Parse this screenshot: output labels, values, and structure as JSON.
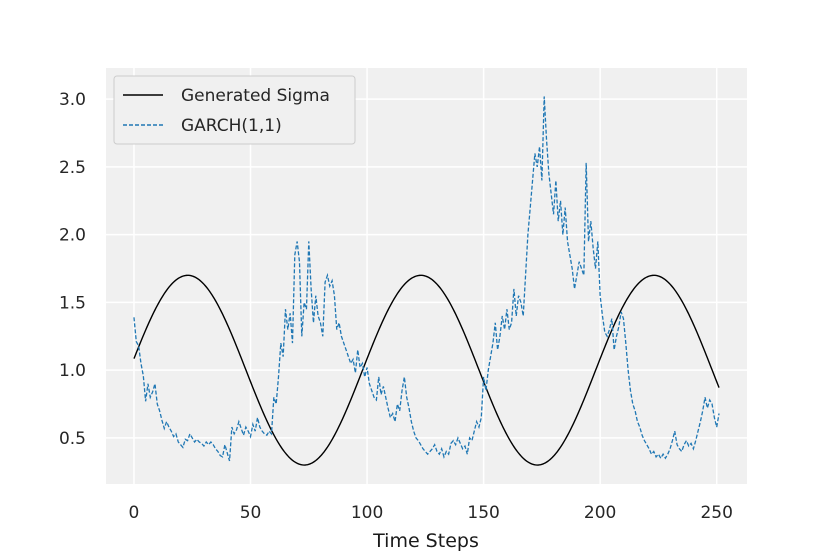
{
  "chart_data": {
    "type": "line",
    "title": "",
    "xlabel": "Time Steps",
    "ylabel": "",
    "xlim": [
      -12,
      263
    ],
    "ylim": [
      0.16,
      3.23
    ],
    "xticks": [
      0,
      50,
      100,
      150,
      200,
      250
    ],
    "yticks": [
      0.5,
      1.0,
      1.5,
      2.0,
      2.5,
      3.0
    ],
    "xtick_labels": [
      "0",
      "50",
      "100",
      "150",
      "200",
      "250"
    ],
    "ytick_labels": [
      "0.5",
      "1.0",
      "1.5",
      "2.0",
      "2.5",
      "3.0"
    ],
    "grid": true,
    "legend_position": "top-left",
    "colors": {
      "generated": "#000000",
      "garch": "#1f77b4",
      "background": "#f0f0f0",
      "grid": "#ffffff"
    },
    "series": [
      {
        "name": "Generated Sigma",
        "style": "solid",
        "formula": "1 + 0.7*sin(2*pi*(t+c)/100)",
        "x_range": [
          0,
          251
        ]
      },
      {
        "name": "GARCH(1,1)",
        "style": "dashed",
        "points": [
          [
            0,
            1.39
          ],
          [
            1,
            1.21
          ],
          [
            2,
            1.18
          ],
          [
            3,
            1.05
          ],
          [
            4,
            0.96
          ],
          [
            5,
            0.77
          ],
          [
            6,
            0.9
          ],
          [
            7,
            0.8
          ],
          [
            8,
            0.84
          ],
          [
            9,
            0.9
          ],
          [
            10,
            0.75
          ],
          [
            11,
            0.7
          ],
          [
            12,
            0.63
          ],
          [
            13,
            0.57
          ],
          [
            14,
            0.62
          ],
          [
            15,
            0.58
          ],
          [
            16,
            0.55
          ],
          [
            17,
            0.51
          ],
          [
            18,
            0.53
          ],
          [
            19,
            0.47
          ],
          [
            20,
            0.45
          ],
          [
            21,
            0.43
          ],
          [
            22,
            0.49
          ],
          [
            23,
            0.48
          ],
          [
            24,
            0.53
          ],
          [
            25,
            0.5
          ],
          [
            26,
            0.47
          ],
          [
            27,
            0.49
          ],
          [
            28,
            0.47
          ],
          [
            29,
            0.46
          ],
          [
            30,
            0.44
          ],
          [
            31,
            0.47
          ],
          [
            32,
            0.45
          ],
          [
            33,
            0.47
          ],
          [
            34,
            0.45
          ],
          [
            35,
            0.42
          ],
          [
            36,
            0.4
          ],
          [
            37,
            0.37
          ],
          [
            38,
            0.36
          ],
          [
            39,
            0.45
          ],
          [
            40,
            0.39
          ],
          [
            41,
            0.33
          ],
          [
            42,
            0.58
          ],
          [
            43,
            0.53
          ],
          [
            44,
            0.56
          ],
          [
            45,
            0.62
          ],
          [
            46,
            0.57
          ],
          [
            47,
            0.52
          ],
          [
            48,
            0.58
          ],
          [
            49,
            0.55
          ],
          [
            50,
            0.51
          ],
          [
            51,
            0.6
          ],
          [
            52,
            0.55
          ],
          [
            53,
            0.65
          ],
          [
            54,
            0.58
          ],
          [
            55,
            0.55
          ],
          [
            56,
            0.53
          ],
          [
            57,
            0.52
          ],
          [
            58,
            0.55
          ],
          [
            59,
            0.53
          ],
          [
            60,
            0.8
          ],
          [
            61,
            0.75
          ],
          [
            62,
            0.95
          ],
          [
            63,
            1.2
          ],
          [
            64,
            1.1
          ],
          [
            65,
            1.45
          ],
          [
            66,
            1.3
          ],
          [
            67,
            1.42
          ],
          [
            68,
            1.2
          ],
          [
            69,
            1.85
          ],
          [
            70,
            1.95
          ],
          [
            71,
            1.8
          ],
          [
            72,
            1.25
          ],
          [
            73,
            1.5
          ],
          [
            74,
            1.45
          ],
          [
            75,
            1.95
          ],
          [
            76,
            1.6
          ],
          [
            77,
            1.35
          ],
          [
            78,
            1.55
          ],
          [
            79,
            1.4
          ],
          [
            80,
            1.35
          ],
          [
            81,
            1.25
          ],
          [
            82,
            1.65
          ],
          [
            83,
            1.7
          ],
          [
            84,
            1.62
          ],
          [
            85,
            1.66
          ],
          [
            86,
            1.55
          ],
          [
            87,
            1.3
          ],
          [
            88,
            1.35
          ],
          [
            89,
            1.25
          ],
          [
            90,
            1.2
          ],
          [
            91,
            1.15
          ],
          [
            92,
            1.1
          ],
          [
            93,
            1.05
          ],
          [
            94,
            1.08
          ],
          [
            95,
            0.98
          ],
          [
            96,
            1.15
          ],
          [
            97,
            1.02
          ],
          [
            98,
            1.05
          ],
          [
            99,
            0.95
          ],
          [
            100,
            1.02
          ],
          [
            101,
            0.9
          ],
          [
            102,
            0.85
          ],
          [
            103,
            0.8
          ],
          [
            104,
            0.78
          ],
          [
            105,
            0.95
          ],
          [
            106,
            0.82
          ],
          [
            107,
            0.88
          ],
          [
            108,
            0.8
          ],
          [
            109,
            0.72
          ],
          [
            110,
            0.65
          ],
          [
            111,
            0.68
          ],
          [
            112,
            0.62
          ],
          [
            113,
            0.75
          ],
          [
            114,
            0.7
          ],
          [
            115,
            0.85
          ],
          [
            116,
            0.95
          ],
          [
            117,
            0.8
          ],
          [
            118,
            0.72
          ],
          [
            119,
            0.62
          ],
          [
            120,
            0.55
          ],
          [
            121,
            0.5
          ],
          [
            122,
            0.48
          ],
          [
            123,
            0.45
          ],
          [
            124,
            0.42
          ],
          [
            125,
            0.4
          ],
          [
            126,
            0.38
          ],
          [
            127,
            0.4
          ],
          [
            128,
            0.42
          ],
          [
            129,
            0.45
          ],
          [
            130,
            0.4
          ],
          [
            131,
            0.38
          ],
          [
            132,
            0.42
          ],
          [
            133,
            0.36
          ],
          [
            134,
            0.4
          ],
          [
            135,
            0.38
          ],
          [
            136,
            0.46
          ],
          [
            137,
            0.48
          ],
          [
            138,
            0.45
          ],
          [
            139,
            0.5
          ],
          [
            140,
            0.46
          ],
          [
            141,
            0.42
          ],
          [
            142,
            0.44
          ],
          [
            143,
            0.38
          ],
          [
            144,
            0.5
          ],
          [
            145,
            0.48
          ],
          [
            146,
            0.55
          ],
          [
            147,
            0.62
          ],
          [
            148,
            0.58
          ],
          [
            149,
            0.65
          ],
          [
            150,
            0.95
          ],
          [
            151,
            0.85
          ],
          [
            152,
            1.0
          ],
          [
            153,
            1.1
          ],
          [
            154,
            1.2
          ],
          [
            155,
            1.35
          ],
          [
            156,
            1.15
          ],
          [
            157,
            1.25
          ],
          [
            158,
            1.4
          ],
          [
            159,
            1.3
          ],
          [
            160,
            1.45
          ],
          [
            161,
            1.3
          ],
          [
            162,
            1.35
          ],
          [
            163,
            1.6
          ],
          [
            164,
            1.4
          ],
          [
            165,
            1.55
          ],
          [
            166,
            1.5
          ],
          [
            167,
            1.4
          ],
          [
            168,
            1.7
          ],
          [
            169,
            2.0
          ],
          [
            170,
            2.2
          ],
          [
            171,
            2.4
          ],
          [
            172,
            2.6
          ],
          [
            173,
            2.5
          ],
          [
            174,
            2.65
          ],
          [
            175,
            2.4
          ],
          [
            176,
            3.02
          ],
          [
            177,
            2.7
          ],
          [
            178,
            2.45
          ],
          [
            179,
            2.3
          ],
          [
            180,
            2.15
          ],
          [
            181,
            2.4
          ],
          [
            182,
            2.1
          ],
          [
            183,
            2.25
          ],
          [
            184,
            2.0
          ],
          [
            185,
            2.2
          ],
          [
            186,
            1.95
          ],
          [
            187,
            1.85
          ],
          [
            188,
            1.75
          ],
          [
            189,
            1.6
          ],
          [
            190,
            1.7
          ],
          [
            191,
            1.8
          ],
          [
            192,
            1.75
          ],
          [
            193,
            1.7
          ],
          [
            194,
            2.53
          ],
          [
            195,
            1.95
          ],
          [
            196,
            2.1
          ],
          [
            197,
            1.9
          ],
          [
            198,
            1.75
          ],
          [
            199,
            1.95
          ],
          [
            200,
            1.55
          ],
          [
            201,
            1.4
          ],
          [
            202,
            1.28
          ],
          [
            203,
            1.25
          ],
          [
            204,
            1.3
          ],
          [
            205,
            1.38
          ],
          [
            206,
            1.15
          ],
          [
            207,
            1.25
          ],
          [
            208,
            1.32
          ],
          [
            209,
            1.43
          ],
          [
            210,
            1.38
          ],
          [
            211,
            1.2
          ],
          [
            212,
            1.0
          ],
          [
            213,
            0.85
          ],
          [
            214,
            0.75
          ],
          [
            215,
            0.7
          ],
          [
            216,
            0.62
          ],
          [
            217,
            0.58
          ],
          [
            218,
            0.52
          ],
          [
            219,
            0.48
          ],
          [
            220,
            0.45
          ],
          [
            221,
            0.42
          ],
          [
            222,
            0.38
          ],
          [
            223,
            0.4
          ],
          [
            224,
            0.36
          ],
          [
            225,
            0.38
          ],
          [
            226,
            0.35
          ],
          [
            227,
            0.38
          ],
          [
            228,
            0.35
          ],
          [
            229,
            0.38
          ],
          [
            230,
            0.42
          ],
          [
            231,
            0.48
          ],
          [
            232,
            0.55
          ],
          [
            233,
            0.45
          ],
          [
            234,
            0.42
          ],
          [
            235,
            0.4
          ],
          [
            236,
            0.45
          ],
          [
            237,
            0.48
          ],
          [
            238,
            0.44
          ],
          [
            239,
            0.46
          ],
          [
            240,
            0.42
          ],
          [
            241,
            0.48
          ],
          [
            242,
            0.55
          ],
          [
            243,
            0.62
          ],
          [
            244,
            0.7
          ],
          [
            245,
            0.8
          ],
          [
            246,
            0.72
          ],
          [
            247,
            0.78
          ],
          [
            248,
            0.75
          ],
          [
            249,
            0.65
          ],
          [
            250,
            0.58
          ],
          [
            251,
            0.68
          ]
        ]
      }
    ]
  }
}
